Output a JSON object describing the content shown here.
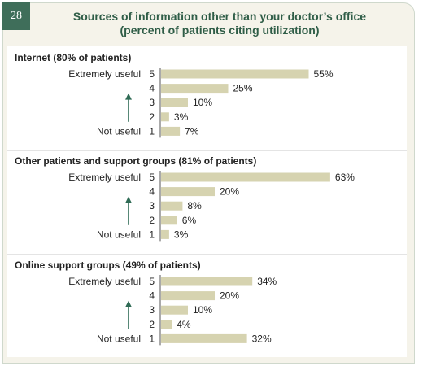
{
  "header": {
    "figure_number": "28",
    "title_line1": "Sources of information other than your doctor’s office",
    "title_line2": "(percent of patients citing utilization)"
  },
  "colors": {
    "badge": "#3f6e5a",
    "title": "#2f5d47",
    "bar": "#d6d3b0",
    "arrow": "#2f6b55",
    "panel_bg": "#f5f3ea"
  },
  "chart_data": [
    {
      "type": "bar",
      "orientation": "horizontal",
      "title": "Internet (80% of patients)",
      "categories": [
        "5",
        "4",
        "3",
        "2",
        "1"
      ],
      "values": [
        55,
        25,
        10,
        3,
        7
      ],
      "value_labels": [
        "55%",
        "25%",
        "10%",
        "3%",
        "7%"
      ],
      "top_label": "Extremely useful",
      "bottom_label": "Not useful"
    },
    {
      "type": "bar",
      "orientation": "horizontal",
      "title": "Other patients and support groups (81% of patients)",
      "categories": [
        "5",
        "4",
        "3",
        "2",
        "1"
      ],
      "values": [
        63,
        20,
        8,
        6,
        3
      ],
      "value_labels": [
        "63%",
        "20%",
        "8%",
        "6%",
        "3%"
      ],
      "top_label": "Extremely useful",
      "bottom_label": "Not useful"
    },
    {
      "type": "bar",
      "orientation": "horizontal",
      "title": "Online support groups (49% of patients)",
      "categories": [
        "5",
        "4",
        "3",
        "2",
        "1"
      ],
      "values": [
        34,
        20,
        10,
        4,
        32
      ],
      "value_labels": [
        "34%",
        "20%",
        "10%",
        "4%",
        "32%"
      ],
      "top_label": "Extremely useful",
      "bottom_label": "Not useful"
    }
  ]
}
